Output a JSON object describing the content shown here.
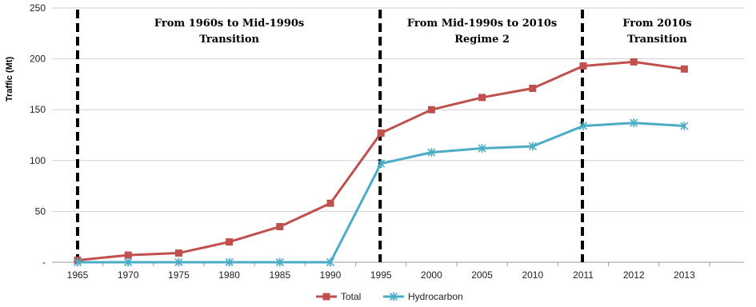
{
  "chart_data": {
    "type": "line",
    "ylabel": "Traffic (Mt)",
    "xlabel": "",
    "ylim": [
      0,
      250
    ],
    "yticks": [
      0,
      50,
      100,
      150,
      200,
      250
    ],
    "ytick_labels": [
      "-",
      "50",
      "100",
      "150",
      "200",
      "250"
    ],
    "categories": [
      "1965",
      "1970",
      "1975",
      "1980",
      "1985",
      "1990",
      "1995",
      "2000",
      "2005",
      "2010",
      "2011",
      "2012",
      "2013"
    ],
    "series": [
      {
        "name": "Total",
        "color": "#c0504d",
        "marker": "square",
        "values": [
          2,
          7,
          9,
          20,
          35,
          58,
          127,
          150,
          162,
          171,
          193,
          197,
          190
        ]
      },
      {
        "name": "Hydrocarbon",
        "color": "#4bacc6",
        "marker": "x",
        "values": [
          0,
          0,
          0,
          0,
          0,
          0,
          97,
          108,
          112,
          114,
          134,
          137,
          134
        ]
      }
    ],
    "dividers_after_category": [
      "1965",
      "1995",
      "2011"
    ],
    "annotations": [
      {
        "line1": "From 1960s to Mid-1990s",
        "line2": "Transition"
      },
      {
        "line1": "From Mid-1990s to 2010s",
        "line2": "Regime 2"
      },
      {
        "line1": "From 2010s",
        "line2": "Transition"
      }
    ],
    "legend_position": "bottom-center",
    "grid": "horizontal"
  }
}
